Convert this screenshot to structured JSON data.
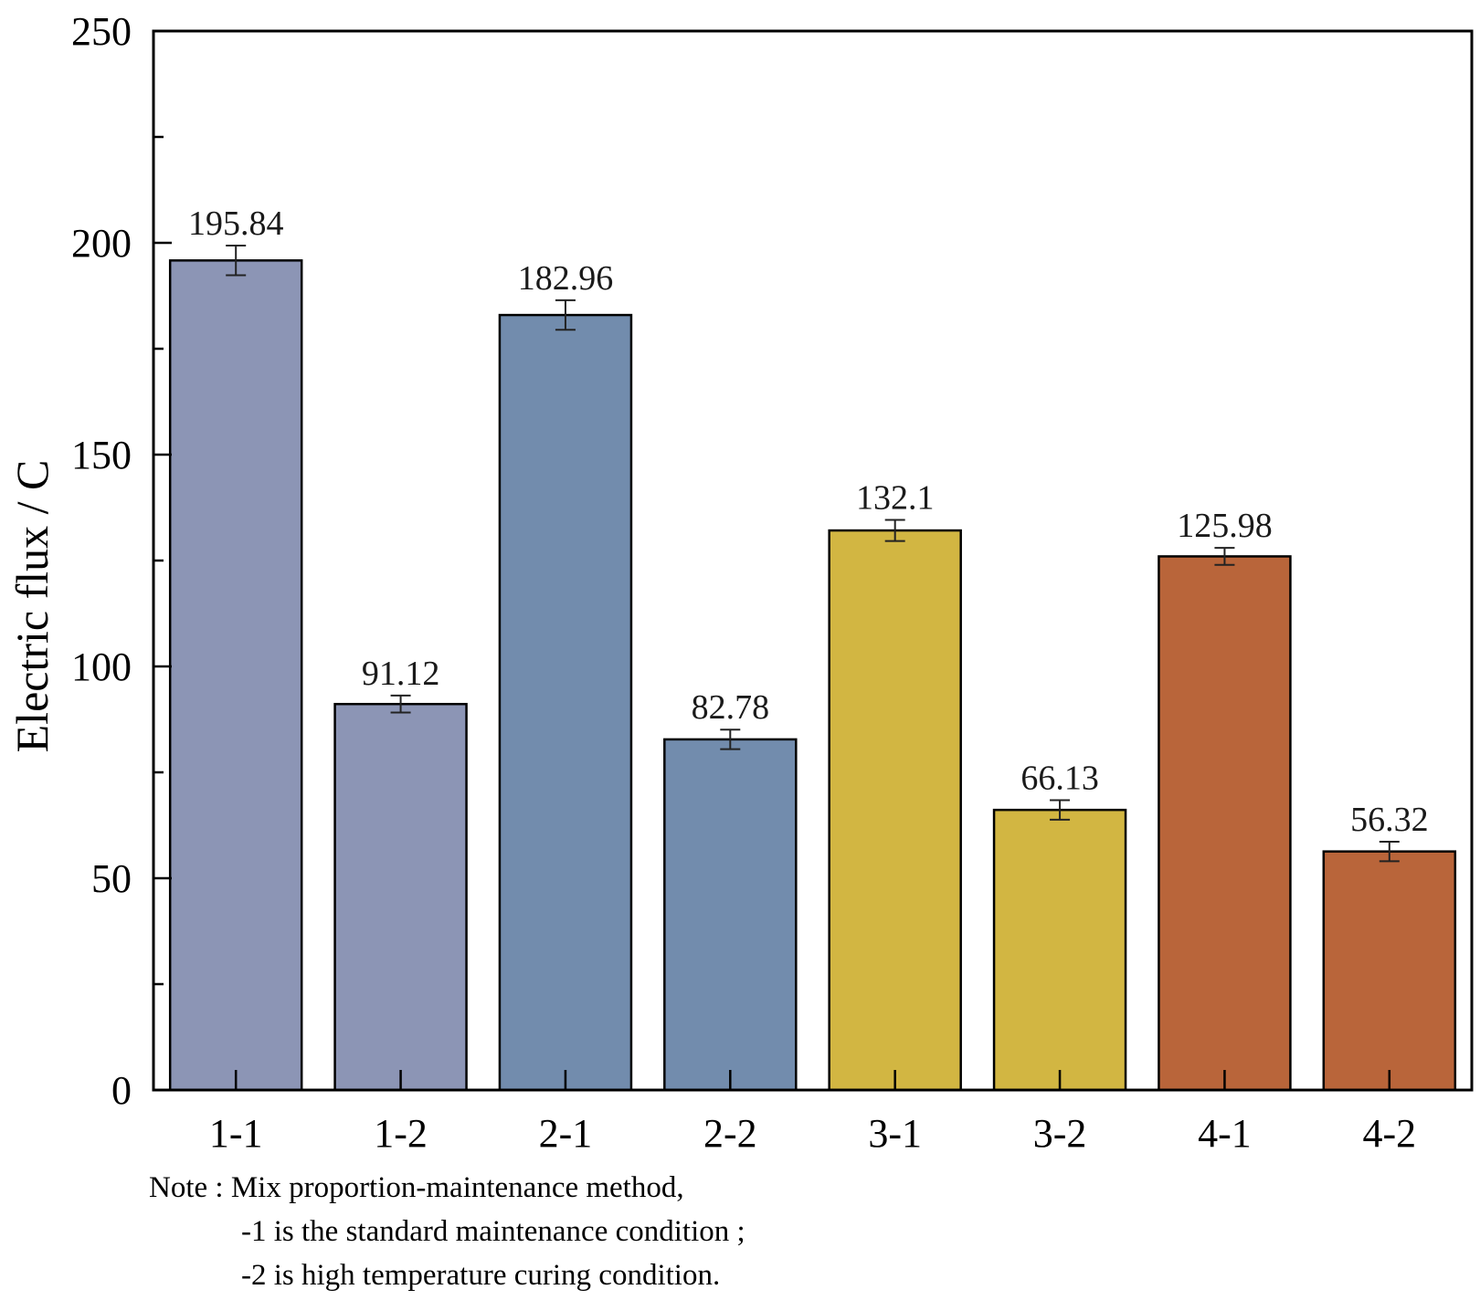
{
  "chart_data": {
    "type": "bar",
    "title": "",
    "xlabel": "",
    "ylabel": "Electric flux / C",
    "ylim": [
      0,
      250
    ],
    "yticks": [
      0,
      50,
      100,
      150,
      200,
      250
    ],
    "grid": false,
    "categories": [
      "1-1",
      "1-2",
      "2-1",
      "2-2",
      "3-1",
      "3-2",
      "4-1",
      "4-2"
    ],
    "values": [
      195.84,
      91.12,
      182.96,
      82.78,
      132.1,
      66.13,
      125.98,
      56.32
    ],
    "value_labels": [
      "195.84",
      "91.12",
      "182.96",
      "82.78",
      "132.1",
      "66.13",
      "125.98",
      "56.32"
    ],
    "errors": [
      3.5,
      2.0,
      3.5,
      2.3,
      2.5,
      2.3,
      2.0,
      2.3
    ],
    "bar_colors": [
      "#8c95b5",
      "#8c95b5",
      "#728cad",
      "#728cad",
      "#d2b642",
      "#d2b642",
      "#b9653a",
      "#b9653a"
    ]
  },
  "note": {
    "line1": "Note : Mix proportion-maintenance method,",
    "line2": "-1 is the standard maintenance condition ;",
    "line3": "-2 is high temperature curing condition."
  }
}
